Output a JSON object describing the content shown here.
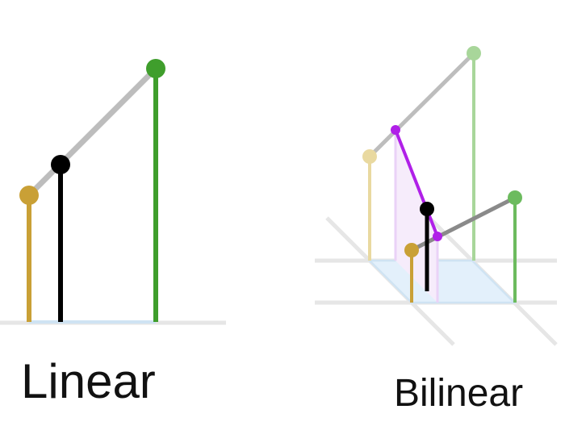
{
  "captions": {
    "linear": "Linear",
    "bilinear": "Bilinear"
  },
  "colors": {
    "gold": "#c9a036",
    "gold_light": "#e9d9a0",
    "green": "#3f9e2c",
    "green_light": "#a8d69a",
    "green_mid": "#6cbb5e",
    "black": "#000000",
    "gray_line": "#bdbdbd",
    "gray_dark_line": "#8a8a8a",
    "purple": "#b020e8",
    "purple_light": "#e8c8f6",
    "blue_base": "#cfe3f3",
    "blue_fill": "#e3f0fb",
    "ground": "#e6e6e6"
  }
}
